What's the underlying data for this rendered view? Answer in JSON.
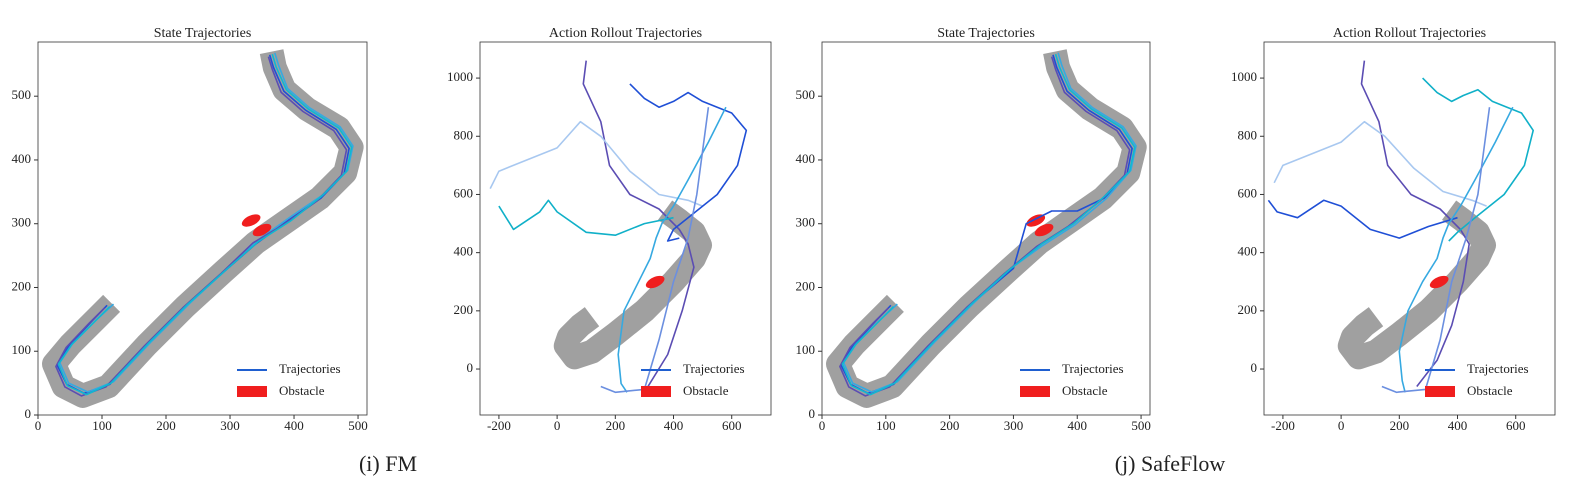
{
  "chart_data": [
    {
      "type": "line",
      "title": "State Trajectories",
      "xlim": [
        0,
        514
      ],
      "ylim": [
        0,
        585
      ],
      "xticks": [
        0,
        100,
        200,
        300,
        400,
        500
      ],
      "yticks": [
        0,
        100,
        200,
        300,
        400,
        500
      ],
      "track": {
        "color": "#a0a0a0",
        "x": [
          115,
          90,
          50,
          25,
          40,
          70,
          110,
          170,
          230,
          290,
          340,
          390,
          440,
          480,
          490,
          470,
          420,
          385,
          370,
          365
        ],
        "y": [
          175,
          150,
          110,
          80,
          45,
          30,
          45,
          110,
          170,
          225,
          270,
          305,
          340,
          380,
          420,
          450,
          480,
          510,
          545,
          570
        ]
      },
      "obstacles": {
        "color": "#f01e1e",
        "x": [
          333,
          350
        ],
        "y": [
          305,
          290
        ]
      },
      "series": [
        {
          "color": "#1f4fd6",
          "x": [
            108,
            85,
            48,
            30,
            45,
            72,
            112,
            172,
            232,
            292,
            340,
            392,
            442,
            478,
            486,
            466,
            418,
            384,
            368,
            362
          ],
          "y": [
            172,
            148,
            108,
            78,
            48,
            34,
            48,
            112,
            172,
            226,
            268,
            306,
            340,
            378,
            418,
            448,
            478,
            508,
            545,
            565
          ]
        },
        {
          "color": "#36a9e1",
          "x": [
            118,
            92,
            54,
            34,
            48,
            78,
            118,
            178,
            238,
            296,
            346,
            396,
            446,
            484,
            492,
            472,
            424,
            390,
            376,
            370
          ],
          "y": [
            174,
            150,
            112,
            82,
            50,
            36,
            52,
            116,
            176,
            230,
            276,
            312,
            346,
            384,
            422,
            452,
            482,
            512,
            548,
            568
          ]
        },
        {
          "color": "#5b4db3",
          "x": [
            104,
            80,
            44,
            28,
            42,
            68,
            106,
            166,
            226,
            286,
            336,
            386,
            436,
            474,
            482,
            462,
            414,
            380,
            366,
            360
          ],
          "y": [
            168,
            144,
            106,
            76,
            44,
            30,
            44,
            108,
            168,
            222,
            270,
            300,
            336,
            376,
            416,
            446,
            476,
            506,
            542,
            562
          ]
        },
        {
          "color": "#10b8d0",
          "x": [
            112,
            88,
            52,
            32,
            46,
            76,
            114,
            174,
            234,
            294,
            344,
            394,
            444,
            482,
            490,
            470,
            422,
            388,
            372,
            366
          ],
          "y": [
            170,
            146,
            110,
            80,
            46,
            32,
            50,
            114,
            174,
            228,
            272,
            304,
            344,
            382,
            420,
            450,
            480,
            510,
            546,
            566
          ]
        }
      ],
      "legend": {
        "labels": [
          "Trajectories",
          "Obstacle"
        ],
        "colors": [
          "#1f5fd0",
          "#f01e1e"
        ]
      }
    },
    {
      "type": "line",
      "title": "Action Rollout Trajectories",
      "xlim": [
        -265,
        735
      ],
      "ylim": [
        -158,
        1124
      ],
      "xticks": [
        -200,
        0,
        200,
        400,
        600
      ],
      "yticks": [
        0,
        200,
        400,
        600,
        800,
        1000
      ],
      "track": {
        "color": "#a0a0a0",
        "x": [
          120,
          80,
          40,
          30,
          60,
          120,
          200,
          300,
          400,
          470,
          491,
          470,
          420,
          371
        ],
        "y": [
          180,
          150,
          110,
          80,
          40,
          60,
          120,
          200,
          300,
          380,
          426,
          470,
          510,
          546
        ]
      },
      "obstacles": {
        "color": "#f01e1e",
        "x": [
          337
        ],
        "y": [
          299
        ]
      },
      "series": [
        {
          "color": "#5b4db3",
          "x": [
            100,
            90,
            150,
            180,
            250,
            350,
            420,
            450,
            470,
            430,
            380,
            300
          ],
          "y": [
            1060,
            980,
            850,
            700,
            600,
            550,
            480,
            430,
            350,
            200,
            50,
            -80
          ]
        },
        {
          "color": "#a8c8f0",
          "x": [
            -230,
            -200,
            -100,
            0,
            80,
            150,
            250,
            350,
            450,
            500
          ],
          "y": [
            620,
            680,
            720,
            760,
            850,
            800,
            680,
            600,
            580,
            560
          ]
        },
        {
          "color": "#10b0c8",
          "x": [
            -200,
            -150,
            -60,
            -30,
            0,
            100,
            200,
            300,
            400
          ],
          "y": [
            560,
            480,
            540,
            580,
            540,
            470,
            460,
            500,
            520
          ]
        },
        {
          "color": "#1f4fd6",
          "x": [
            250,
            300,
            350,
            400,
            450,
            500,
            550,
            600,
            650,
            620,
            550,
            450,
            400,
            380,
            420
          ],
          "y": [
            980,
            930,
            900,
            920,
            950,
            920,
            900,
            880,
            820,
            700,
            600,
            520,
            480,
            440,
            450
          ]
        },
        {
          "color": "#36a9e1",
          "x": [
            240,
            220,
            210,
            230,
            280,
            320,
            340,
            360,
            400,
            450,
            520,
            580
          ],
          "y": [
            -80,
            -50,
            50,
            200,
            300,
            380,
            450,
            500,
            560,
            650,
            780,
            900
          ]
        },
        {
          "color": "#6b8fe0",
          "x": [
            150,
            200,
            300,
            350,
            400,
            450,
            480,
            500,
            520
          ],
          "y": [
            -60,
            -80,
            -70,
            100,
            300,
            450,
            600,
            750,
            900
          ]
        }
      ],
      "legend": {
        "labels": [
          "Trajectories",
          "Obstacle"
        ],
        "colors": [
          "#1f5fd0",
          "#f01e1e"
        ]
      }
    },
    {
      "type": "line",
      "title": "State Trajectories",
      "xlim": [
        0,
        514
      ],
      "ylim": [
        0,
        585
      ],
      "xticks": [
        0,
        100,
        200,
        300,
        400,
        500
      ],
      "yticks": [
        0,
        100,
        200,
        300,
        400,
        500
      ],
      "track": {
        "color": "#a0a0a0",
        "x": [
          115,
          90,
          50,
          25,
          40,
          70,
          110,
          170,
          230,
          290,
          340,
          390,
          440,
          480,
          490,
          470,
          420,
          385,
          370,
          365
        ],
        "y": [
          175,
          150,
          110,
          80,
          45,
          30,
          45,
          110,
          170,
          225,
          270,
          305,
          340,
          380,
          420,
          450,
          480,
          510,
          545,
          570
        ]
      },
      "obstacles": {
        "color": "#f01e1e",
        "x": [
          335,
          348
        ],
        "y": [
          305,
          290
        ]
      },
      "series": [
        {
          "color": "#1f4fd6",
          "x": [
            108,
            85,
            48,
            30,
            45,
            72,
            112,
            172,
            232,
            300,
            320,
            360,
            400,
            442,
            478,
            486,
            466,
            418,
            384,
            368,
            362
          ],
          "y": [
            172,
            148,
            108,
            78,
            48,
            34,
            48,
            112,
            172,
            230,
            300,
            320,
            320,
            340,
            378,
            418,
            448,
            478,
            508,
            545,
            565
          ]
        },
        {
          "color": "#36a9e1",
          "x": [
            118,
            92,
            54,
            34,
            48,
            78,
            118,
            178,
            238,
            296,
            346,
            396,
            446,
            484,
            492,
            472,
            424,
            390,
            376,
            370
          ],
          "y": [
            174,
            150,
            112,
            82,
            50,
            36,
            52,
            116,
            176,
            230,
            266,
            298,
            340,
            384,
            422,
            452,
            482,
            512,
            548,
            568
          ]
        },
        {
          "color": "#5b4db3",
          "x": [
            104,
            80,
            44,
            28,
            42,
            68,
            106,
            166,
            226,
            286,
            336,
            386,
            436,
            474,
            482,
            462,
            414,
            380,
            366,
            360
          ],
          "y": [
            168,
            144,
            106,
            76,
            44,
            30,
            44,
            108,
            168,
            222,
            264,
            296,
            336,
            376,
            416,
            446,
            476,
            506,
            542,
            562
          ]
        },
        {
          "color": "#10b8d0",
          "x": [
            112,
            88,
            52,
            32,
            46,
            76,
            114,
            174,
            234,
            294,
            344,
            394,
            444,
            482,
            490,
            470,
            422,
            388,
            372,
            366
          ],
          "y": [
            170,
            146,
            110,
            80,
            46,
            32,
            50,
            114,
            174,
            228,
            268,
            300,
            344,
            382,
            420,
            450,
            480,
            510,
            546,
            566
          ]
        }
      ],
      "legend": {
        "labels": [
          "Trajectories",
          "Obstacle"
        ],
        "colors": [
          "#1f5fd0",
          "#f01e1e"
        ]
      }
    },
    {
      "type": "line",
      "title": "Action Rollout Trajectories",
      "xlim": [
        -265,
        735
      ],
      "ylim": [
        -158,
        1124
      ],
      "xticks": [
        -200,
        0,
        200,
        400,
        600
      ],
      "yticks": [
        0,
        200,
        400,
        600,
        800,
        1000
      ],
      "track": {
        "color": "#a0a0a0",
        "x": [
          120,
          80,
          40,
          30,
          60,
          120,
          200,
          300,
          400,
          470,
          491,
          470,
          420,
          371
        ],
        "y": [
          180,
          150,
          110,
          80,
          40,
          60,
          120,
          200,
          300,
          380,
          426,
          470,
          510,
          546
        ]
      },
      "obstacles": {
        "color": "#f01e1e",
        "x": [
          337
        ],
        "y": [
          299
        ]
      },
      "series": [
        {
          "color": "#5b4db3",
          "x": [
            80,
            70,
            130,
            160,
            240,
            340,
            410,
            440,
            420,
            380,
            330,
            260
          ],
          "y": [
            1060,
            980,
            850,
            700,
            600,
            550,
            480,
            430,
            300,
            150,
            30,
            -60
          ]
        },
        {
          "color": "#a8c8f0",
          "x": [
            -230,
            -200,
            -100,
            0,
            80,
            150,
            250,
            350,
            450,
            500
          ],
          "y": [
            640,
            700,
            740,
            780,
            850,
            800,
            690,
            610,
            580,
            560
          ]
        },
        {
          "color": "#1f4fd6",
          "x": [
            -250,
            -220,
            -150,
            -60,
            0,
            100,
            200,
            300,
            400
          ],
          "y": [
            580,
            540,
            520,
            580,
            560,
            480,
            450,
            490,
            520
          ]
        },
        {
          "color": "#10b0c8",
          "x": [
            280,
            330,
            380,
            420,
            470,
            520,
            570,
            620,
            660,
            630,
            560,
            460,
            400,
            370
          ],
          "y": [
            1000,
            950,
            920,
            940,
            960,
            920,
            900,
            880,
            820,
            700,
            600,
            520,
            470,
            440
          ]
        },
        {
          "color": "#36a9e1",
          "x": [
            220,
            210,
            200,
            230,
            280,
            330,
            350,
            370,
            410,
            460,
            530,
            590
          ],
          "y": [
            -80,
            -40,
            60,
            200,
            300,
            380,
            450,
            500,
            560,
            650,
            780,
            900
          ]
        },
        {
          "color": "#6b8fe0",
          "x": [
            140,
            190,
            290,
            340,
            380,
            430,
            470,
            490,
            510
          ],
          "y": [
            -60,
            -80,
            -70,
            100,
            300,
            450,
            600,
            750,
            900
          ]
        }
      ],
      "legend": {
        "labels": [
          "Trajectories",
          "Obstacle"
        ],
        "colors": [
          "#1f5fd0",
          "#f01e1e"
        ]
      }
    }
  ],
  "captions": [
    "(i) FM",
    "(j) SafeFlow"
  ]
}
